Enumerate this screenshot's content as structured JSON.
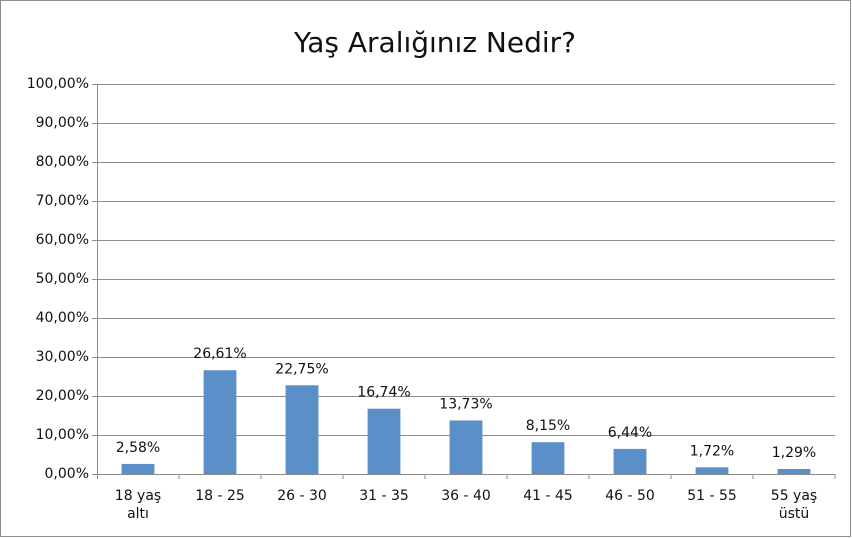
{
  "chart_data": {
    "type": "bar",
    "title": "Yaş Aralığınız Nedir?",
    "categories": [
      [
        "18 yaş",
        "altı"
      ],
      [
        "18 - 25"
      ],
      [
        "26 - 30"
      ],
      [
        "31 - 35"
      ],
      [
        "36 - 40"
      ],
      [
        "41 - 45"
      ],
      [
        "46 - 50"
      ],
      [
        "51 - 55"
      ],
      [
        "55 yaş",
        "üstü"
      ]
    ],
    "values": [
      2.58,
      26.61,
      22.75,
      16.74,
      13.73,
      8.15,
      6.44,
      1.72,
      1.29
    ],
    "value_labels": [
      "2,58%",
      "26,61%",
      "22,75%",
      "16,74%",
      "13,73%",
      "8,15%",
      "6,44%",
      "1,72%",
      "1,29%"
    ],
    "color": "#5b8fc7",
    "ylim": [
      0,
      100
    ],
    "yticks": [
      {
        "value": 0,
        "label": "0,00%"
      },
      {
        "value": 10,
        "label": "10,00%"
      },
      {
        "value": 20,
        "label": "20,00%"
      },
      {
        "value": 30,
        "label": "30,00%"
      },
      {
        "value": 40,
        "label": "40,00%"
      },
      {
        "value": 50,
        "label": "50,00%"
      },
      {
        "value": 60,
        "label": "60,00%"
      },
      {
        "value": 70,
        "label": "70,00%"
      },
      {
        "value": 80,
        "label": "80,00%"
      },
      {
        "value": 90,
        "label": "90,00%"
      },
      {
        "value": 100,
        "label": "100,00%"
      }
    ],
    "grid": true
  }
}
